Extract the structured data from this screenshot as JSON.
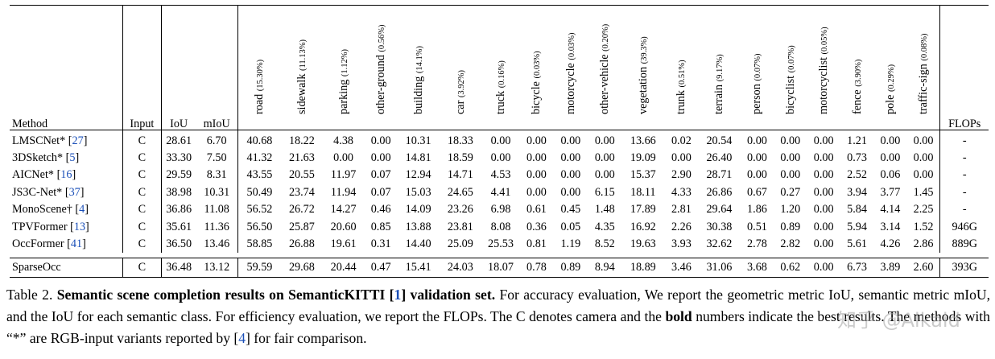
{
  "table": {
    "headers": {
      "method": "Method",
      "input": "Input",
      "iou": "IoU",
      "miou": "mIoU",
      "flops": "FLOPs"
    },
    "classes": [
      {
        "name": "road",
        "pct": "(15.30%)"
      },
      {
        "name": "sidewalk",
        "pct": "(11.13%)"
      },
      {
        "name": "parking",
        "pct": "(1.12%)"
      },
      {
        "name": "other-ground",
        "pct": "(0.56%)"
      },
      {
        "name": "building",
        "pct": "(14.1%)"
      },
      {
        "name": "car",
        "pct": "(3.92%)"
      },
      {
        "name": "truck",
        "pct": "(0.16%)"
      },
      {
        "name": "bicycle",
        "pct": "(0.03%)"
      },
      {
        "name": "motorcycle",
        "pct": "(0.03%)"
      },
      {
        "name": "other-vehicle",
        "pct": "(0.20%)"
      },
      {
        "name": "vegetation",
        "pct": "(39.3%)"
      },
      {
        "name": "trunk",
        "pct": "(0.51%)"
      },
      {
        "name": "terrain",
        "pct": "(9.17%)"
      },
      {
        "name": "person",
        "pct": "(0.07%)"
      },
      {
        "name": "bicyclist",
        "pct": "(0.07%)"
      },
      {
        "name": "motorcyclist",
        "pct": "(0.05%)"
      },
      {
        "name": "fence",
        "pct": "(3.90%)"
      },
      {
        "name": "pole",
        "pct": "(0.29%)"
      },
      {
        "name": "traffic-sign",
        "pct": "(0.08%)"
      }
    ],
    "rows": [
      {
        "method": "LMSCNet*",
        "cite": "27",
        "input": "C",
        "iou": "28.61",
        "miou": "6.70",
        "values": [
          "40.68",
          "18.22",
          "4.38",
          "0.00",
          "10.31",
          "18.33",
          "0.00",
          "0.00",
          "0.00",
          "0.00",
          "13.66",
          "0.02",
          "20.54",
          "0.00",
          "0.00",
          "0.00",
          "1.21",
          "0.00",
          "0.00"
        ],
        "flops": "-",
        "bold": []
      },
      {
        "method": "3DSketch*",
        "cite": "5",
        "input": "C",
        "iou": "33.30",
        "miou": "7.50",
        "values": [
          "41.32",
          "21.63",
          "0.00",
          "0.00",
          "14.81",
          "18.59",
          "0.00",
          "0.00",
          "0.00",
          "0.00",
          "19.09",
          "0.00",
          "26.40",
          "0.00",
          "0.00",
          "0.00",
          "0.73",
          "0.00",
          "0.00"
        ],
        "flops": "-",
        "bold": []
      },
      {
        "method": "AICNet*",
        "cite": "16",
        "input": "C",
        "iou": "29.59",
        "miou": "8.31",
        "values": [
          "43.55",
          "20.55",
          "11.97",
          "0.07",
          "12.94",
          "14.71",
          "4.53",
          "0.00",
          "0.00",
          "0.00",
          "15.37",
          "2.90",
          "28.71",
          "0.00",
          "0.00",
          "0.00",
          "2.52",
          "0.06",
          "0.00"
        ],
        "flops": "-",
        "bold": []
      },
      {
        "method": "JS3C-Net*",
        "cite": "37",
        "input": "C",
        "iou": "38.98",
        "miou": "10.31",
        "values": [
          "50.49",
          "23.74",
          "11.94",
          "0.07",
          "15.03",
          "24.65",
          "4.41",
          "0.00",
          "0.00",
          "6.15",
          "18.11",
          "4.33",
          "26.86",
          "0.67",
          "0.27",
          "0.00",
          "3.94",
          "3.77",
          "1.45"
        ],
        "flops": "-",
        "bold": [
          "iou",
          "c11"
        ]
      },
      {
        "method": "MonoScene†",
        "cite": "4",
        "input": "C",
        "iou": "36.86",
        "miou": "11.08",
        "values": [
          "56.52",
          "26.72",
          "14.27",
          "0.46",
          "14.09",
          "23.26",
          "6.98",
          "0.61",
          "0.45",
          "1.48",
          "17.89",
          "2.81",
          "29.64",
          "1.86",
          "1.20",
          "0.00",
          "5.84",
          "4.14",
          "2.25"
        ],
        "flops": "-",
        "bold": []
      },
      {
        "method": "TPVFormer",
        "cite": "13",
        "input": "C",
        "iou": "35.61",
        "miou": "11.36",
        "values": [
          "56.50",
          "25.87",
          "20.60",
          "0.85",
          "13.88",
          "23.81",
          "8.08",
          "0.36",
          "0.05",
          "4.35",
          "16.92",
          "2.26",
          "30.38",
          "0.51",
          "0.89",
          "0.00",
          "5.94",
          "3.14",
          "1.52"
        ],
        "flops": "946G",
        "bold": [
          "c2",
          "c3"
        ]
      },
      {
        "method": "OccFormer",
        "cite": "41",
        "input": "C",
        "iou": "36.50",
        "miou": "13.46",
        "values": [
          "58.85",
          "26.88",
          "19.61",
          "0.31",
          "14.40",
          "25.09",
          "25.53",
          "0.81",
          "1.19",
          "8.52",
          "19.63",
          "3.93",
          "32.62",
          "2.78",
          "2.82",
          "0.00",
          "5.61",
          "4.26",
          "2.86"
        ],
        "flops": "889G",
        "bold": [
          "miou",
          "c5",
          "c6",
          "c7",
          "c8",
          "c10",
          "c12",
          "c14",
          "c17",
          "c18"
        ]
      },
      {
        "method": "SparseOcc",
        "cite": "",
        "input": "C",
        "iou": "36.48",
        "miou": "13.12",
        "values": [
          "59.59",
          "29.68",
          "20.44",
          "0.47",
          "15.41",
          "24.03",
          "18.07",
          "0.78",
          "0.89",
          "8.94",
          "18.89",
          "3.46",
          "31.06",
          "3.68",
          "0.62",
          "0.00",
          "6.73",
          "3.89",
          "2.60"
        ],
        "flops": "393G",
        "bold": [
          "c0",
          "c1",
          "c4",
          "c9",
          "c13",
          "c16"
        ]
      }
    ]
  },
  "caption": {
    "label": "Table 2.",
    "title_a": "Semantic scene completion results on SemanticKITTI [",
    "title_cite": "1",
    "title_b": "] validation set.",
    "text_a": " For accuracy evaluation, We report the geometric metric IoU, semantic metric mIoU, and the IoU for each semantic class. For efficiency evaluation, we report the FLOPs. The C denotes camera and the ",
    "bold_word": "bold",
    "text_b": " numbers indicate the best results. The methods with “*” are RGB-input variants reported by [",
    "text_cite": "4",
    "text_c": "] for fair comparison."
  },
  "watermark": "知乎 @Alkaid"
}
